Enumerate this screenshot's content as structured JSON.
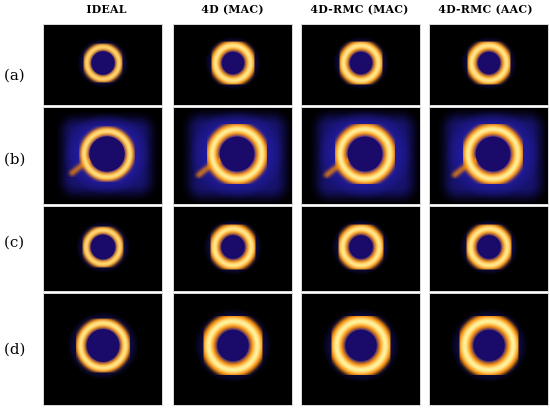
{
  "figure": {
    "columns": [
      {
        "label": "IDEAL"
      },
      {
        "label": "4D (MAC)"
      },
      {
        "label": "4D-RMC (MAC)"
      },
      {
        "label": "4D-RMC (AAC)"
      }
    ],
    "rows": [
      {
        "label": "(a)"
      },
      {
        "label": "(b)"
      },
      {
        "label": "(c)"
      },
      {
        "label": "(d)"
      }
    ],
    "colors": {
      "background": "#000000",
      "halo": "#2a22c8",
      "ring_outer": "#ff8c00",
      "ring_core": "#fff4a0"
    },
    "image_content": "cardiac myocardial perfusion ring images, hot colormap"
  }
}
